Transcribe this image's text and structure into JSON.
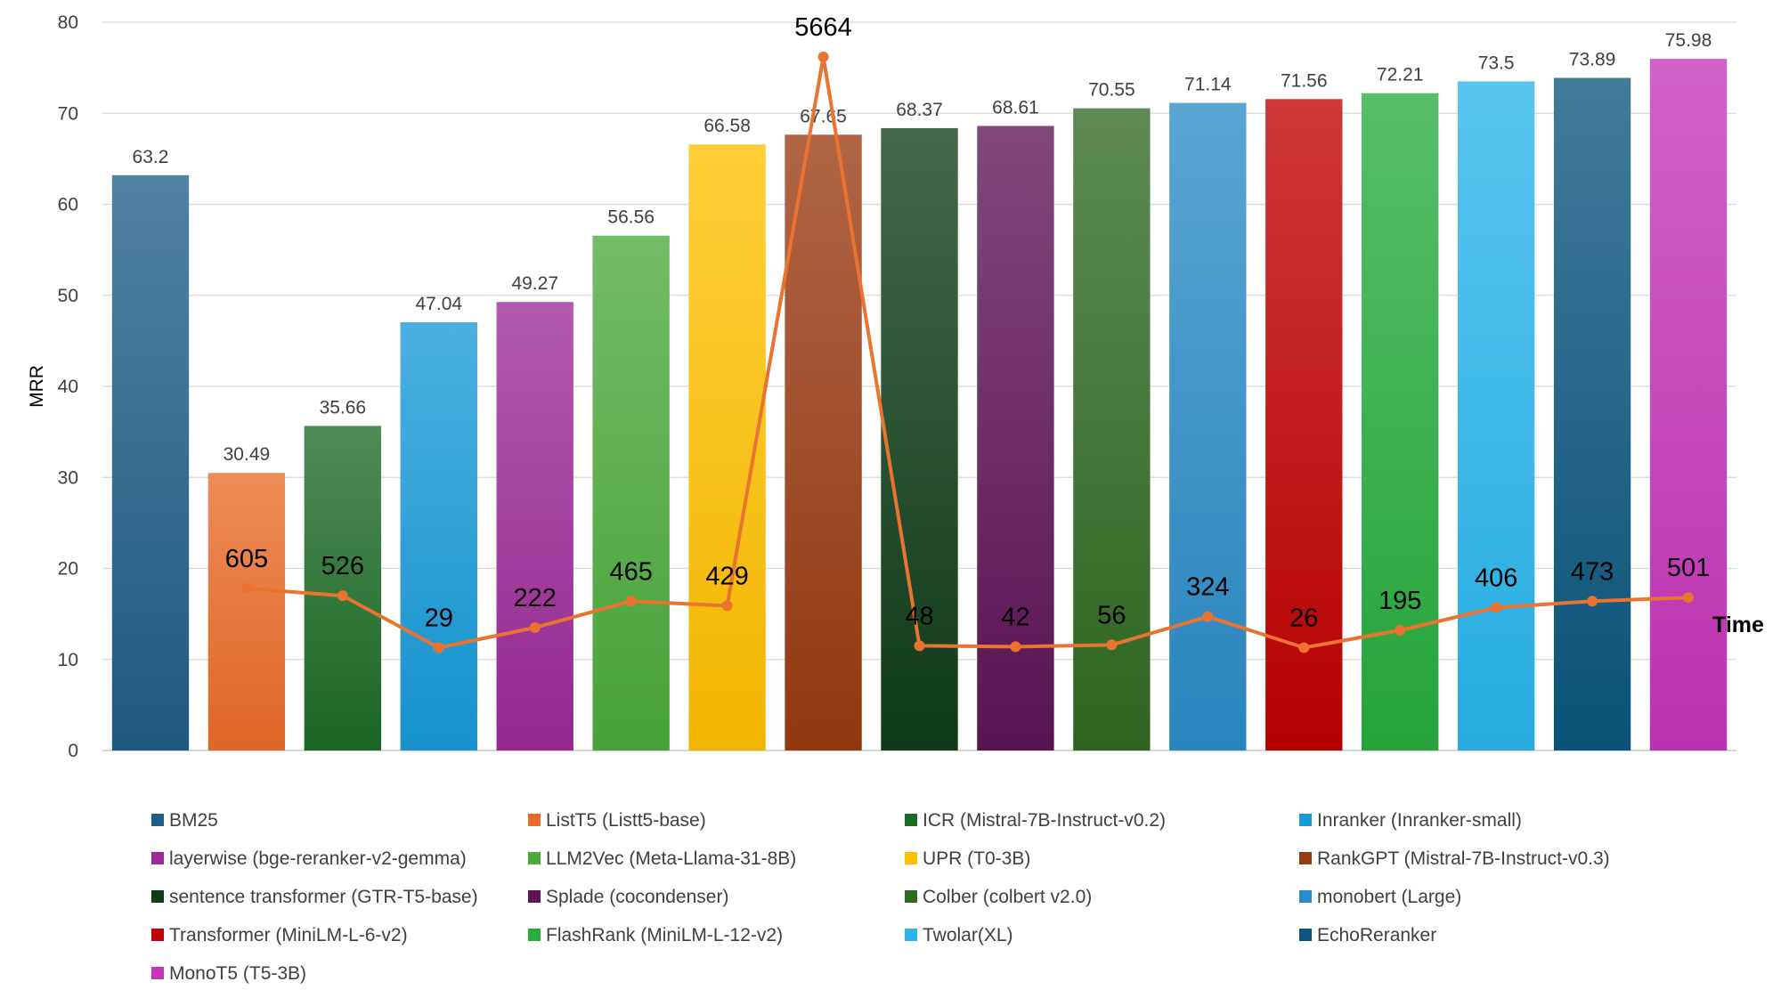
{
  "chart_data": {
    "type": "bar",
    "ylabel": "MRR",
    "ylim": [
      0,
      80
    ],
    "yticks": [
      0,
      10,
      20,
      30,
      40,
      50,
      60,
      70,
      80
    ],
    "grid": true,
    "legend_position": "bottom",
    "series": [
      {
        "name": "BM25",
        "value": 63.2,
        "time": null,
        "color": "#1f5f86"
      },
      {
        "name": "ListT5 (Listt5-base)",
        "value": 30.49,
        "time": 605,
        "color": "#ea6b28"
      },
      {
        "name": "ICR (Mistral-7B-Instruct-v0.2)",
        "value": 35.66,
        "time": 526,
        "color": "#1c6b26"
      },
      {
        "name": "Inranker (Inranker-small)",
        "value": 47.04,
        "time": 29,
        "color": "#179ad8"
      },
      {
        "name": "layerwise (bge-reranker-v2-gemma)",
        "value": 49.27,
        "time": 222,
        "color": "#9c2a98"
      },
      {
        "name": "LLM2Vec (Meta-Llama-31-8B)",
        "value": 56.56,
        "time": 465,
        "color": "#4aab3a"
      },
      {
        "name": "UPR (T0-3B)",
        "value": 66.58,
        "time": 429,
        "color": "#ffc000"
      },
      {
        "name": "RankGPT (Mistral-7B-Instruct-v0.3)",
        "value": 67.65,
        "time": 5664,
        "color": "#9a3a10"
      },
      {
        "name": "sentence transformer (GTR-T5-base)",
        "value": 68.37,
        "time": 48,
        "color": "#0f3d1a"
      },
      {
        "name": "Splade (cocondenser)",
        "value": 68.61,
        "time": 42,
        "color": "#5e1456"
      },
      {
        "name": "Colber (colbert v2.0)",
        "value": 70.55,
        "time": 56,
        "color": "#2f6a22"
      },
      {
        "name": "monobert (Large)",
        "value": 71.14,
        "time": 324,
        "color": "#2a8cc8"
      },
      {
        "name": "Transformer  (MiniLM-L-6-v2)",
        "value": 71.56,
        "time": 26,
        "color": "#c00000"
      },
      {
        "name": "FlashRank (MiniLM-L-12-v2)",
        "value": 72.21,
        "time": 195,
        "color": "#27ad3c"
      },
      {
        "name": "Twolar(XL)",
        "value": 73.5,
        "time": 406,
        "color": "#29b5ec"
      },
      {
        "name": "EchoReranker",
        "value": 73.89,
        "time": 473,
        "color": "#0b567e"
      },
      {
        "name": "MonoT5 (T5-3B)",
        "value": 75.98,
        "time": 501,
        "color": "#c535b9"
      }
    ],
    "line": {
      "name": "Time",
      "color": "#ea7330",
      "plot_values": [
        null,
        17.8,
        17.0,
        11.3,
        13.5,
        16.4,
        15.9,
        76.2,
        11.5,
        11.4,
        11.6,
        14.7,
        11.3,
        13.2,
        15.7,
        16.4,
        16.8
      ]
    }
  }
}
